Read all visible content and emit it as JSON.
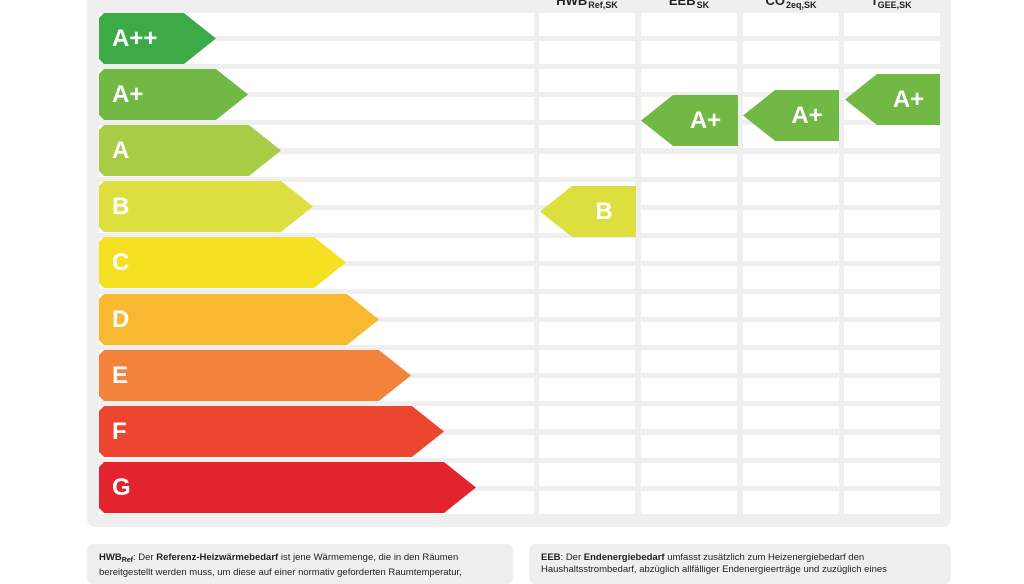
{
  "columns": [
    {
      "main": "HWB",
      "sub": "Ref,SK"
    },
    {
      "main": "EEB",
      "sub": "SK"
    },
    {
      "main": "CO",
      "sub": "2eq,SK"
    },
    {
      "main": "f",
      "sub": "GEE,SK"
    }
  ],
  "ratings": [
    {
      "label": "A++",
      "color": "#3daa48"
    },
    {
      "label": "A+",
      "color": "#72b844"
    },
    {
      "label": "A",
      "color": "#a9cb45"
    },
    {
      "label": "B",
      "color": "#dddf3e"
    },
    {
      "label": "C",
      "color": "#f6e022"
    },
    {
      "label": "D",
      "color": "#f8b830"
    },
    {
      "label": "E",
      "color": "#f3823a"
    },
    {
      "label": "F",
      "color": "#ec4631"
    },
    {
      "label": "G",
      "color": "#e3232d"
    }
  ],
  "markers": [
    {
      "column": "HWB Ref,SK",
      "label": "B",
      "color": "#dddf3e"
    },
    {
      "column": "EEB SK",
      "label": "A+",
      "color": "#72b844"
    },
    {
      "column": "CO2eq,SK",
      "label": "A+",
      "color": "#72b844"
    },
    {
      "column": "fGEE,SK",
      "label": "A+",
      "color": "#72b844"
    }
  ],
  "legend": {
    "hwb": {
      "term": "HWB",
      "term_sub": "Ref",
      "sep": ": Der ",
      "bold": "Referenz-Heizwärmebedarf",
      "text": " ist jene Wärmemenge, die in den Räumen bereitgestellt werden muss, um diese auf einer normativ geforderten Raumtemperatur,"
    },
    "eeb": {
      "term": "EEB",
      "sep": ": Der ",
      "bold": "Endenergiebedarf",
      "text": " umfasst zusätzlich zum Heizenergiebedarf den Haushaltsstrombedarf, abzüglich allfälliger Endenergieerträge und zuzüglich eines"
    }
  }
}
